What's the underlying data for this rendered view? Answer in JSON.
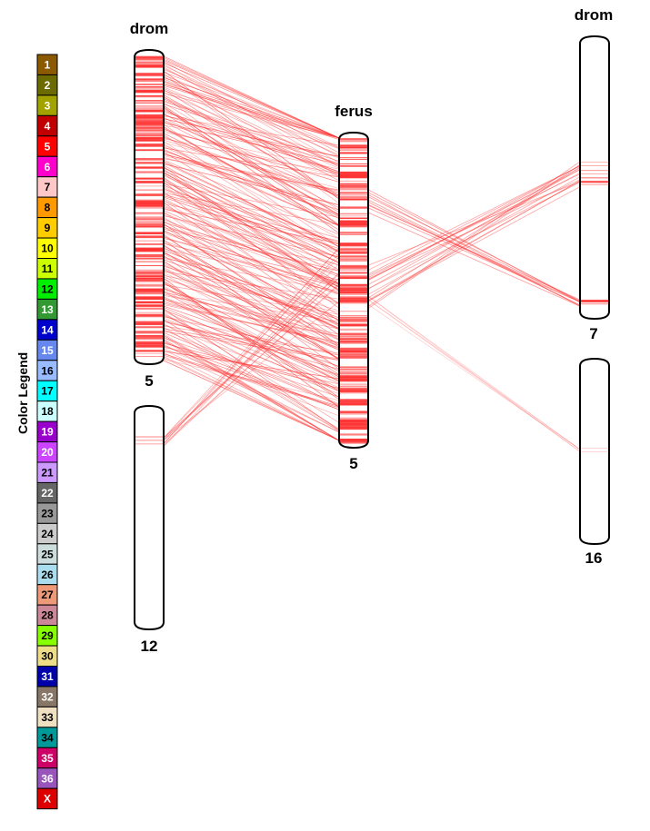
{
  "legend": {
    "title": "Color Legend",
    "entries": [
      {
        "label": "1",
        "color": "#8B5A00",
        "text": "#ffffff"
      },
      {
        "label": "2",
        "color": "#6B6B00",
        "text": "#ffffff"
      },
      {
        "label": "3",
        "color": "#A3A300",
        "text": "#ffffff"
      },
      {
        "label": "4",
        "color": "#C00000",
        "text": "#ffffff"
      },
      {
        "label": "5",
        "color": "#FF0000",
        "text": "#ffffff"
      },
      {
        "label": "6",
        "color": "#FF00CC",
        "text": "#ffffff"
      },
      {
        "label": "7",
        "color": "#FFC8C8",
        "text": "#000000"
      },
      {
        "label": "8",
        "color": "#FF9900",
        "text": "#000000"
      },
      {
        "label": "9",
        "color": "#FFCC00",
        "text": "#000000"
      },
      {
        "label": "10",
        "color": "#FFFF00",
        "text": "#000000"
      },
      {
        "label": "11",
        "color": "#CCFF00",
        "text": "#000000"
      },
      {
        "label": "12",
        "color": "#00EE00",
        "text": "#000000"
      },
      {
        "label": "13",
        "color": "#339933",
        "text": "#ffffff"
      },
      {
        "label": "14",
        "color": "#0000CC",
        "text": "#ffffff"
      },
      {
        "label": "15",
        "color": "#6688EE",
        "text": "#ffffff"
      },
      {
        "label": "16",
        "color": "#99BBFF",
        "text": "#000000"
      },
      {
        "label": "17",
        "color": "#00FFFF",
        "text": "#000000"
      },
      {
        "label": "18",
        "color": "#CCFFFF",
        "text": "#000000"
      },
      {
        "label": "19",
        "color": "#9900CC",
        "text": "#ffffff"
      },
      {
        "label": "20",
        "color": "#CC44FF",
        "text": "#ffffff"
      },
      {
        "label": "21",
        "color": "#CC99FF",
        "text": "#000000"
      },
      {
        "label": "22",
        "color": "#666666",
        "text": "#ffffff"
      },
      {
        "label": "23",
        "color": "#999999",
        "text": "#000000"
      },
      {
        "label": "24",
        "color": "#CCCCCC",
        "text": "#000000"
      },
      {
        "label": "25",
        "color": "#CCDDDD",
        "text": "#000000"
      },
      {
        "label": "26",
        "color": "#AADDEE",
        "text": "#000000"
      },
      {
        "label": "27",
        "color": "#EE9977",
        "text": "#000000"
      },
      {
        "label": "28",
        "color": "#CC8899",
        "text": "#000000"
      },
      {
        "label": "29",
        "color": "#88FF00",
        "text": "#000000"
      },
      {
        "label": "30",
        "color": "#EEDD88",
        "text": "#000000"
      },
      {
        "label": "31",
        "color": "#0000AA",
        "text": "#ffffff"
      },
      {
        "label": "32",
        "color": "#887766",
        "text": "#ffffff"
      },
      {
        "label": "33",
        "color": "#EEE0C0",
        "text": "#000000"
      },
      {
        "label": "34",
        "color": "#009999",
        "text": "#000000"
      },
      {
        "label": "35",
        "color": "#CC0066",
        "text": "#ffffff"
      },
      {
        "label": "36",
        "color": "#9955BB",
        "text": "#ffffff"
      },
      {
        "label": "X",
        "color": "#DD0000",
        "text": "#ffffff"
      }
    ]
  },
  "genomes": {
    "left": "drom",
    "center": "ferus",
    "right": "drom"
  },
  "chromosomes": {
    "left_top": "5",
    "left_bottom": "12",
    "center": "5",
    "right_top": "7",
    "right_bottom": "16"
  },
  "colors": {
    "link": "#FF3333",
    "outline": "#000000"
  }
}
